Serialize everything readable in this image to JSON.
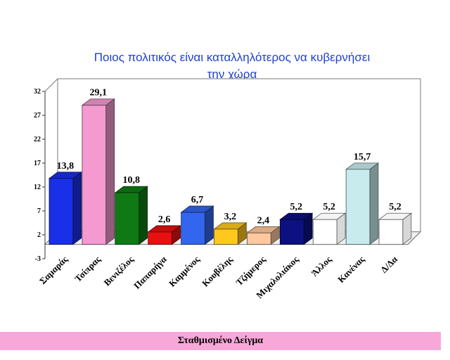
{
  "chart_data": {
    "type": "bar",
    "title": "Ποιος πολιτικός είναι καταλληλότερος  να κυβερνήσει την χώρα",
    "categories": [
      "Σαμαράς",
      "Τσίπρας",
      "Βενιζέλος",
      "Παπαρήγα",
      "Καμμένος",
      "Κουβέλης",
      "Τζήμερος",
      "Μιχαλολιάκος",
      "Άλλος",
      "Κανένας",
      "Δ/Δα"
    ],
    "values": [
      13.8,
      29.1,
      10.8,
      2.6,
      6.7,
      3.2,
      2.4,
      5.2,
      5.2,
      15.7,
      5.2
    ],
    "value_labels": [
      "13,8",
      "29,1",
      "10,8",
      "2,6",
      "6,7",
      "3,2",
      "2,4",
      "5,2",
      "5,2",
      "15,7",
      "5,2"
    ],
    "colors": [
      "#1a2fe8",
      "#f59ad0",
      "#0f7a14",
      "#e81010",
      "#3366ee",
      "#ffc81e",
      "#ffc89e",
      "#0c1080",
      "#ffffff",
      "#c8ecee",
      "#ffffff"
    ],
    "ylim": [
      -3,
      32
    ],
    "yticks": [
      -3,
      2,
      7,
      12,
      17,
      22,
      27,
      32
    ],
    "grid": false,
    "legend": "none",
    "xlabel": "",
    "ylabel": ""
  },
  "footer": {
    "text": "Σταθμισμένο Δείγμα"
  }
}
